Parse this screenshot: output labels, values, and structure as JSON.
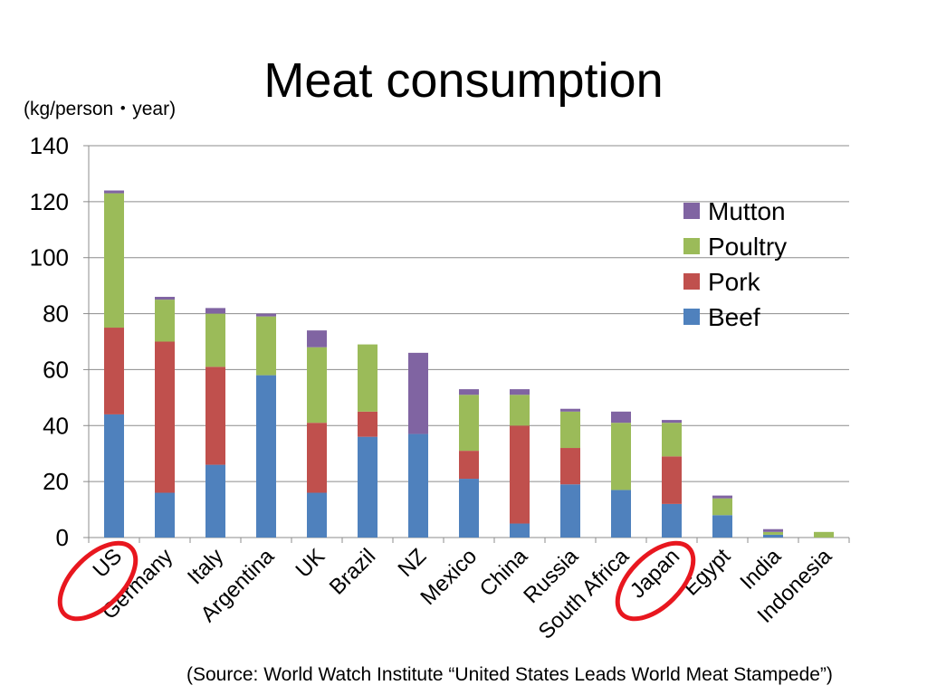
{
  "title": "Meat consumption",
  "unit_label": "(kg/person・year)",
  "source": "(Source: World Watch Institute “United States Leads World Meat Stampede”)",
  "chart_data": {
    "type": "bar",
    "stacked": true,
    "title": "Meat consumption",
    "ylabel": "(kg/person・year)",
    "xlabel": "",
    "ylim": [
      0,
      140
    ],
    "yticks": [
      0,
      20,
      40,
      60,
      80,
      100,
      120,
      140
    ],
    "grid": true,
    "legend_position": "top-right",
    "categories": [
      "US",
      "Germany",
      "Italy",
      "Argentina",
      "UK",
      "Brazil",
      "NZ",
      "Mexico",
      "China",
      "Russia",
      "South Africa",
      "Japan",
      "Egypt",
      "India",
      "Indonesia"
    ],
    "series": [
      {
        "name": "Beef",
        "color": "#4f81bd",
        "values": [
          44,
          16,
          26,
          58,
          16,
          36,
          37,
          21,
          5,
          19,
          17,
          12,
          8,
          1,
          0
        ]
      },
      {
        "name": "Pork",
        "color": "#c0504d",
        "values": [
          31,
          54,
          35,
          0,
          25,
          9,
          0,
          10,
          35,
          13,
          0,
          17,
          0,
          0,
          0
        ]
      },
      {
        "name": "Poultry",
        "color": "#9bbb59",
        "values": [
          48,
          15,
          19,
          21,
          27,
          24,
          0,
          20,
          11,
          13,
          24,
          12,
          6,
          1,
          2
        ]
      },
      {
        "name": "Mutton",
        "color": "#8064a2",
        "values": [
          1,
          1,
          2,
          1,
          6,
          0,
          29,
          2,
          2,
          1,
          4,
          1,
          1,
          1,
          0
        ]
      }
    ],
    "highlighted_categories": [
      "US",
      "Japan"
    ],
    "highlight_color": "#e8171f"
  }
}
